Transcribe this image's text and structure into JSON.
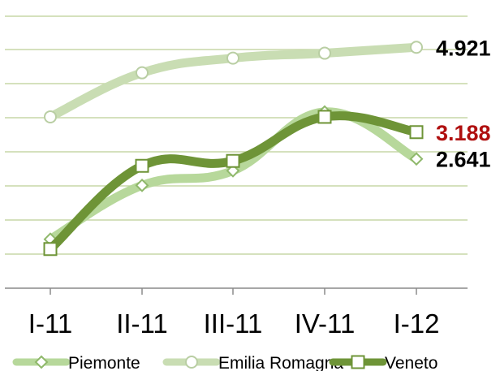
{
  "chart_data": {
    "type": "line",
    "categories": [
      "I-11",
      "II-11",
      "III-11",
      "IV-11",
      "I-12"
    ],
    "ylim": [
      0,
      5.5
    ],
    "grid": true,
    "legend_placement": "bottom",
    "series": [
      {
        "name": "Piemonte",
        "marker": "diamond",
        "color": "#b7d89b",
        "values": [
          1.0,
          2.1,
          2.4,
          3.6,
          2.641
        ]
      },
      {
        "name": "Emilia Romagna",
        "marker": "circle",
        "color": "#c9ddb3",
        "values": [
          3.5,
          4.4,
          4.7,
          4.8,
          4.921
        ]
      },
      {
        "name": "Veneto",
        "marker": "square",
        "color": "#6e9437",
        "values": [
          0.8,
          2.5,
          2.6,
          3.5,
          3.188
        ]
      }
    ],
    "end_labels": [
      {
        "series": "Emilia Romagna",
        "text": "4.921",
        "color": "#000000"
      },
      {
        "series": "Veneto",
        "text": "3.188",
        "color": "#b01010"
      },
      {
        "series": "Piemonte",
        "text": "2.641",
        "color": "#000000"
      }
    ]
  }
}
